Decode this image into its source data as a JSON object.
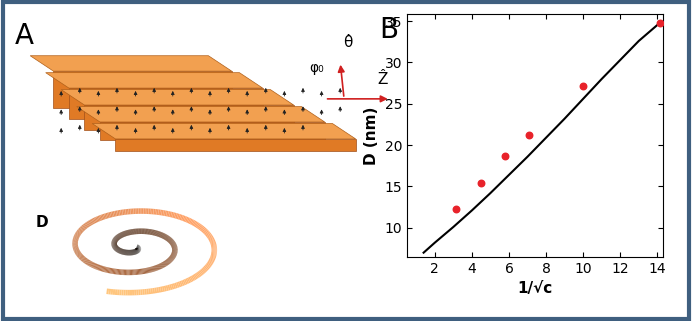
{
  "panel_labels": [
    "A",
    "B"
  ],
  "illustration": {
    "angle_label": "φ₀",
    "theta_label": "θ̂",
    "axis_label": "Ẑ",
    "spiral_label": "D"
  },
  "chart_data": {
    "type": "line",
    "xlabel": "1/√c",
    "ylabel": "D (nm)",
    "xlim": [
      0.5,
      14.3
    ],
    "ylim": [
      6.5,
      35.8
    ],
    "xticks": [
      2,
      4,
      6,
      8,
      10,
      12,
      14
    ],
    "yticks": [
      10,
      15,
      20,
      25,
      30,
      35
    ],
    "grid": false,
    "series": [
      {
        "type": "line",
        "color": "#000000",
        "line_style": "solid",
        "x": [
          1.4,
          2,
          3,
          4,
          5,
          6,
          7,
          8,
          9,
          10,
          11,
          12,
          13,
          14.14
        ],
        "values": [
          7.0,
          8.2,
          10.1,
          12.1,
          14.2,
          16.4,
          18.6,
          20.9,
          23.2,
          25.6,
          28.0,
          30.3,
          32.6,
          34.8
        ]
      },
      {
        "type": "scatter",
        "color": "#e8222a",
        "marker": "o",
        "x": [
          3.16,
          4.47,
          5.77,
          7.07,
          10.0,
          14.14
        ],
        "values": [
          12.3,
          15.4,
          18.7,
          21.2,
          27.2,
          34.8
        ]
      }
    ]
  }
}
